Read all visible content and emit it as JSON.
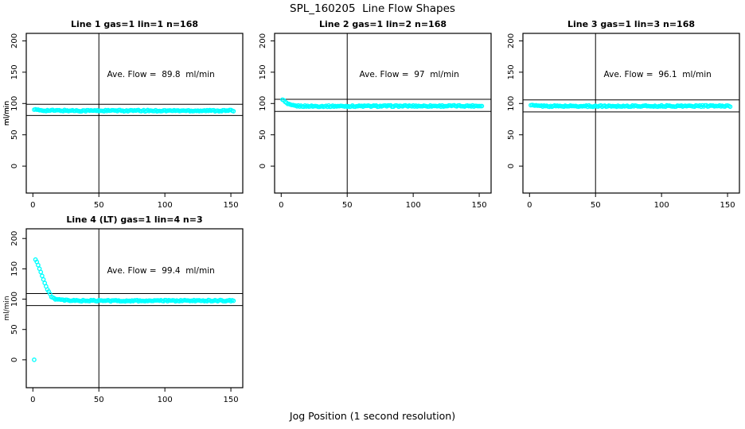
{
  "chart_data": {
    "type": "scatter",
    "suptitle": "SPL_160205  Line Flow Shapes",
    "xlabel": "Jog Position (1 second resolution)",
    "ylabel": "ml/min",
    "x_ticks": [
      0,
      50,
      100,
      150
    ],
    "y_ticks": [
      0,
      50,
      100,
      150,
      200
    ],
    "xlim": [
      -5,
      159
    ],
    "ylim": [
      -45,
      213
    ],
    "grid": false,
    "point_color": "#00ffff",
    "line_color": "#000000",
    "vline_x": 50,
    "annotation_label": "Ave. Flow =",
    "annotation_unit": "ml/min",
    "panels": [
      {
        "title": "Line 1 gas=1 lin=1 n=168",
        "n": 168,
        "ave_flow": "89.8",
        "ref_lines": [
          98.8,
          80.8
        ],
        "series": [
          [
            1,
            90.5
          ],
          [
            2,
            90
          ],
          [
            4,
            89.3
          ],
          [
            8,
            89
          ],
          [
            15,
            88.8
          ],
          [
            40,
            88.6
          ],
          [
            80,
            88.5
          ],
          [
            120,
            88.6
          ],
          [
            152,
            88.6
          ]
        ],
        "outliers": []
      },
      {
        "title": "Line 2 gas=1 lin=2 n=168",
        "n": 168,
        "ave_flow": "97",
        "ref_lines": [
          106.7,
          87.3
        ],
        "series": [
          [
            1,
            107
          ],
          [
            2,
            104.5
          ],
          [
            3,
            102.3
          ],
          [
            4,
            100.6
          ],
          [
            5,
            99.2
          ],
          [
            6,
            98.2
          ],
          [
            7,
            97.4
          ],
          [
            8,
            96.9
          ],
          [
            10,
            96.3
          ],
          [
            14,
            95.9
          ],
          [
            25,
            95.7
          ],
          [
            60,
            95.8
          ],
          [
            100,
            96
          ],
          [
            152,
            96.2
          ]
        ],
        "outliers": []
      },
      {
        "title": "Line 3 gas=1 lin=3 n=168",
        "n": 168,
        "ave_flow": "96.1",
        "ref_lines": [
          105.7,
          86.5
        ],
        "series": [
          [
            1,
            97.3
          ],
          [
            3,
            96.7
          ],
          [
            6,
            96.2
          ],
          [
            12,
            95.9
          ],
          [
            40,
            95.8
          ],
          [
            80,
            95.9
          ],
          [
            120,
            96
          ],
          [
            152,
            96
          ]
        ],
        "outliers": []
      },
      {
        "title": "Line 4 (LT) gas=1 lin=4 n=3",
        "n": 3,
        "ave_flow": "99.4",
        "ref_lines": [
          109.3,
          89.5
        ],
        "series": [
          [
            2,
            165
          ],
          [
            3,
            161.5
          ],
          [
            4,
            156.5
          ],
          [
            5,
            150.5
          ],
          [
            6,
            144.5
          ],
          [
            7,
            138.5
          ],
          [
            8,
            132.5
          ],
          [
            9,
            126.5
          ],
          [
            10,
            121
          ],
          [
            11,
            116
          ],
          [
            12,
            111.5
          ],
          [
            13,
            107.8
          ],
          [
            14,
            104.8
          ],
          [
            15,
            102.6
          ],
          [
            16,
            101.2
          ],
          [
            18,
            99.6
          ],
          [
            20,
            98.8
          ],
          [
            24,
            98
          ],
          [
            30,
            97.6
          ],
          [
            45,
            97.4
          ],
          [
            70,
            97.3
          ],
          [
            100,
            97.4
          ],
          [
            130,
            97.6
          ],
          [
            152,
            97.5
          ]
        ],
        "outliers": [
          [
            1,
            0
          ]
        ]
      }
    ]
  }
}
